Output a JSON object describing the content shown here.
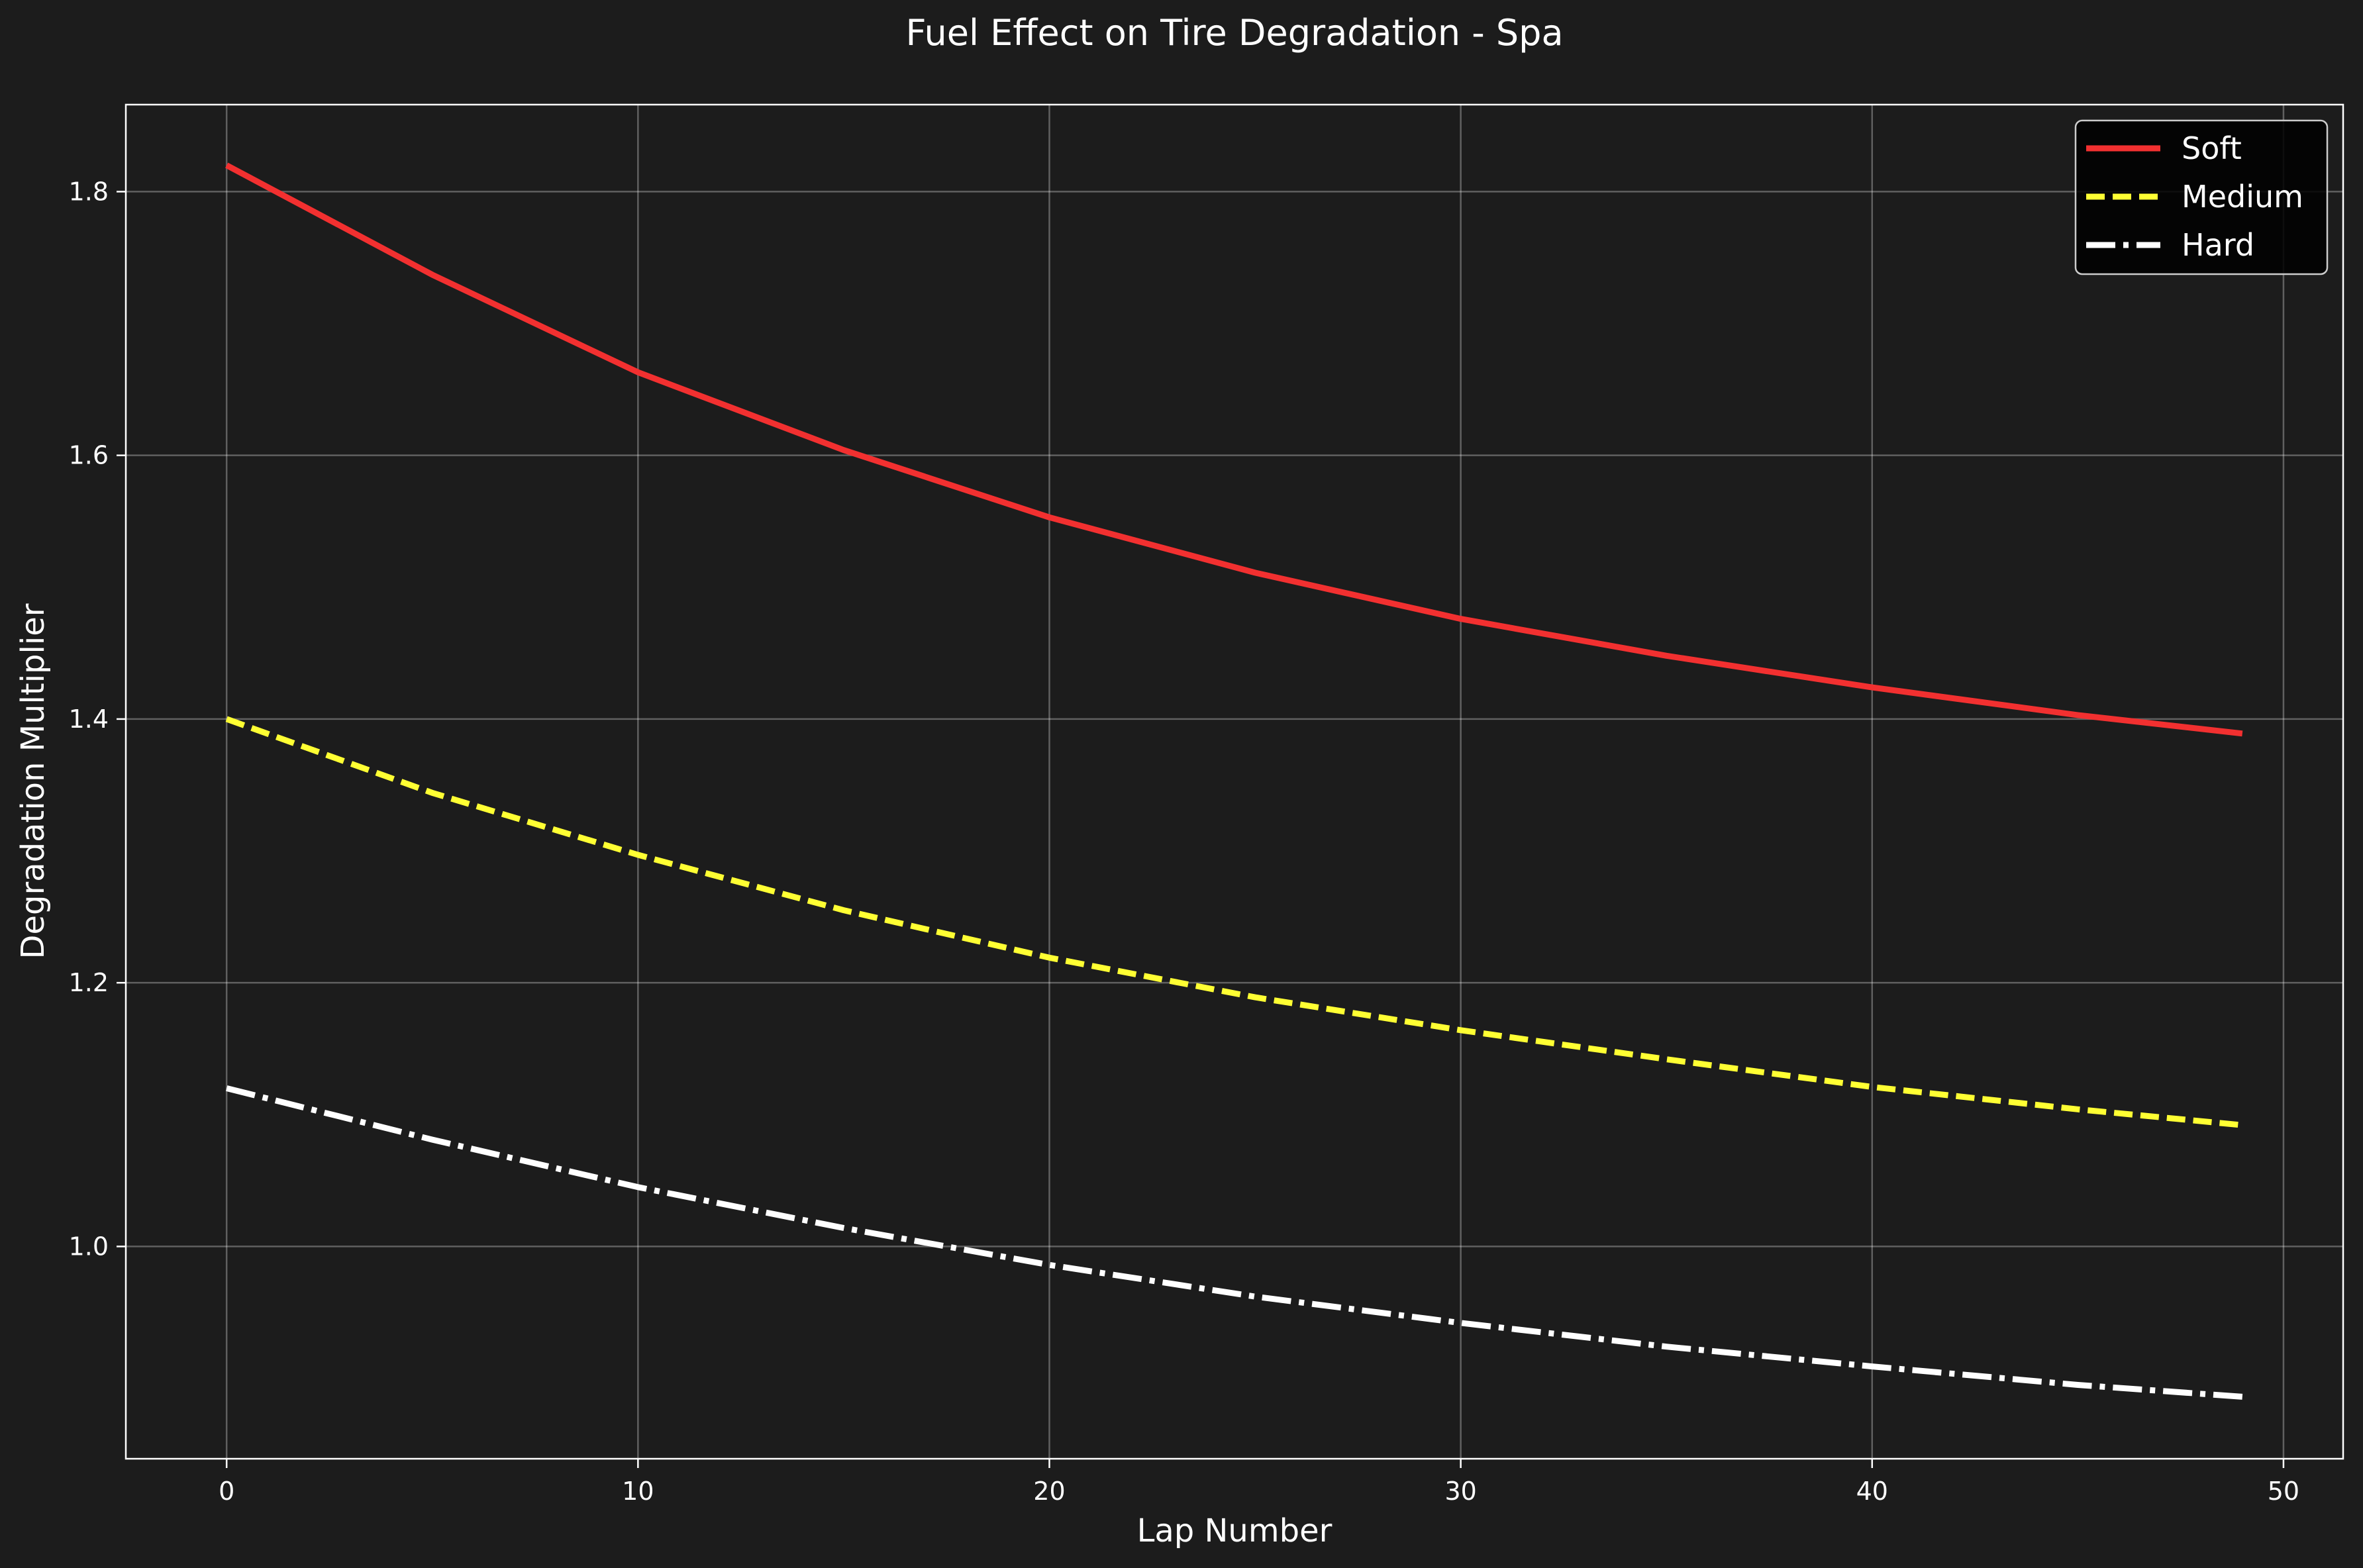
{
  "chart_data": {
    "type": "line",
    "title": "Fuel Effect on Tire Degradation - Spa",
    "xlabel": "Lap Number",
    "ylabel": "Degradation Multiplier",
    "xlim": [
      -2.45,
      51.45
    ],
    "ylim": [
      0.839,
      1.866
    ],
    "xticks": [
      0,
      10,
      20,
      30,
      40,
      50
    ],
    "yticks": [
      1.0,
      1.2,
      1.4,
      1.6,
      1.8
    ],
    "xtick_labels": [
      "0",
      "10",
      "20",
      "30",
      "40",
      "50"
    ],
    "ytick_labels": [
      "1.0",
      "1.2",
      "1.4",
      "1.6",
      "1.8"
    ],
    "grid": true,
    "legend_position": "top-right",
    "background": "#1c1c1c",
    "series": [
      {
        "name": "Soft",
        "color": "#f23030",
        "dash": "solid",
        "x": [
          0,
          5,
          10,
          15,
          20,
          25,
          30,
          35,
          40,
          45,
          49
        ],
        "y": [
          1.82,
          1.737,
          1.663,
          1.604,
          1.553,
          1.511,
          1.476,
          1.448,
          1.424,
          1.403,
          1.389
        ]
      },
      {
        "name": "Medium",
        "color": "#ffff33",
        "dash": "dashed",
        "x": [
          0,
          5,
          10,
          15,
          20,
          25,
          30,
          35,
          40,
          45,
          49
        ],
        "y": [
          1.4,
          1.344,
          1.297,
          1.255,
          1.219,
          1.189,
          1.164,
          1.142,
          1.121,
          1.104,
          1.092
        ]
      },
      {
        "name": "Hard",
        "color": "#ffffff",
        "dash": "dashdot",
        "x": [
          0,
          5,
          10,
          15,
          20,
          25,
          30,
          35,
          40,
          45,
          49
        ],
        "y": [
          1.12,
          1.081,
          1.045,
          1.014,
          0.986,
          0.962,
          0.942,
          0.924,
          0.909,
          0.895,
          0.886
        ]
      }
    ]
  }
}
